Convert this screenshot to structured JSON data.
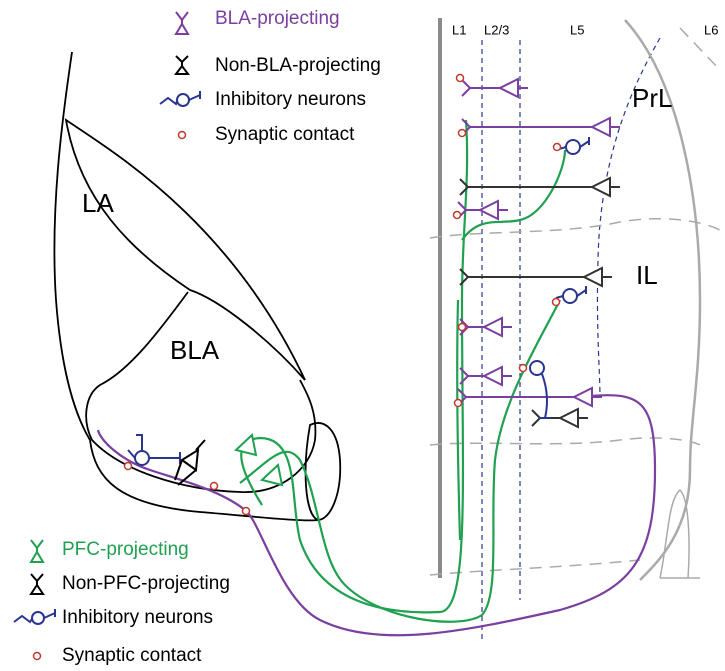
{
  "legend_top": [
    "BLA-projecting",
    "Non-BLA-projecting",
    "Inhibitory neurons",
    "Synaptic contact"
  ],
  "legend_bottom": [
    "PFC-projecting",
    "Non-PFC-projecting",
    "Inhibitory neurons",
    "Synaptic contact"
  ],
  "regions": [
    "LA",
    "BLA",
    "PrL",
    "IL"
  ],
  "layers": [
    "L1",
    "L2/3",
    "L5",
    "L6"
  ]
}
